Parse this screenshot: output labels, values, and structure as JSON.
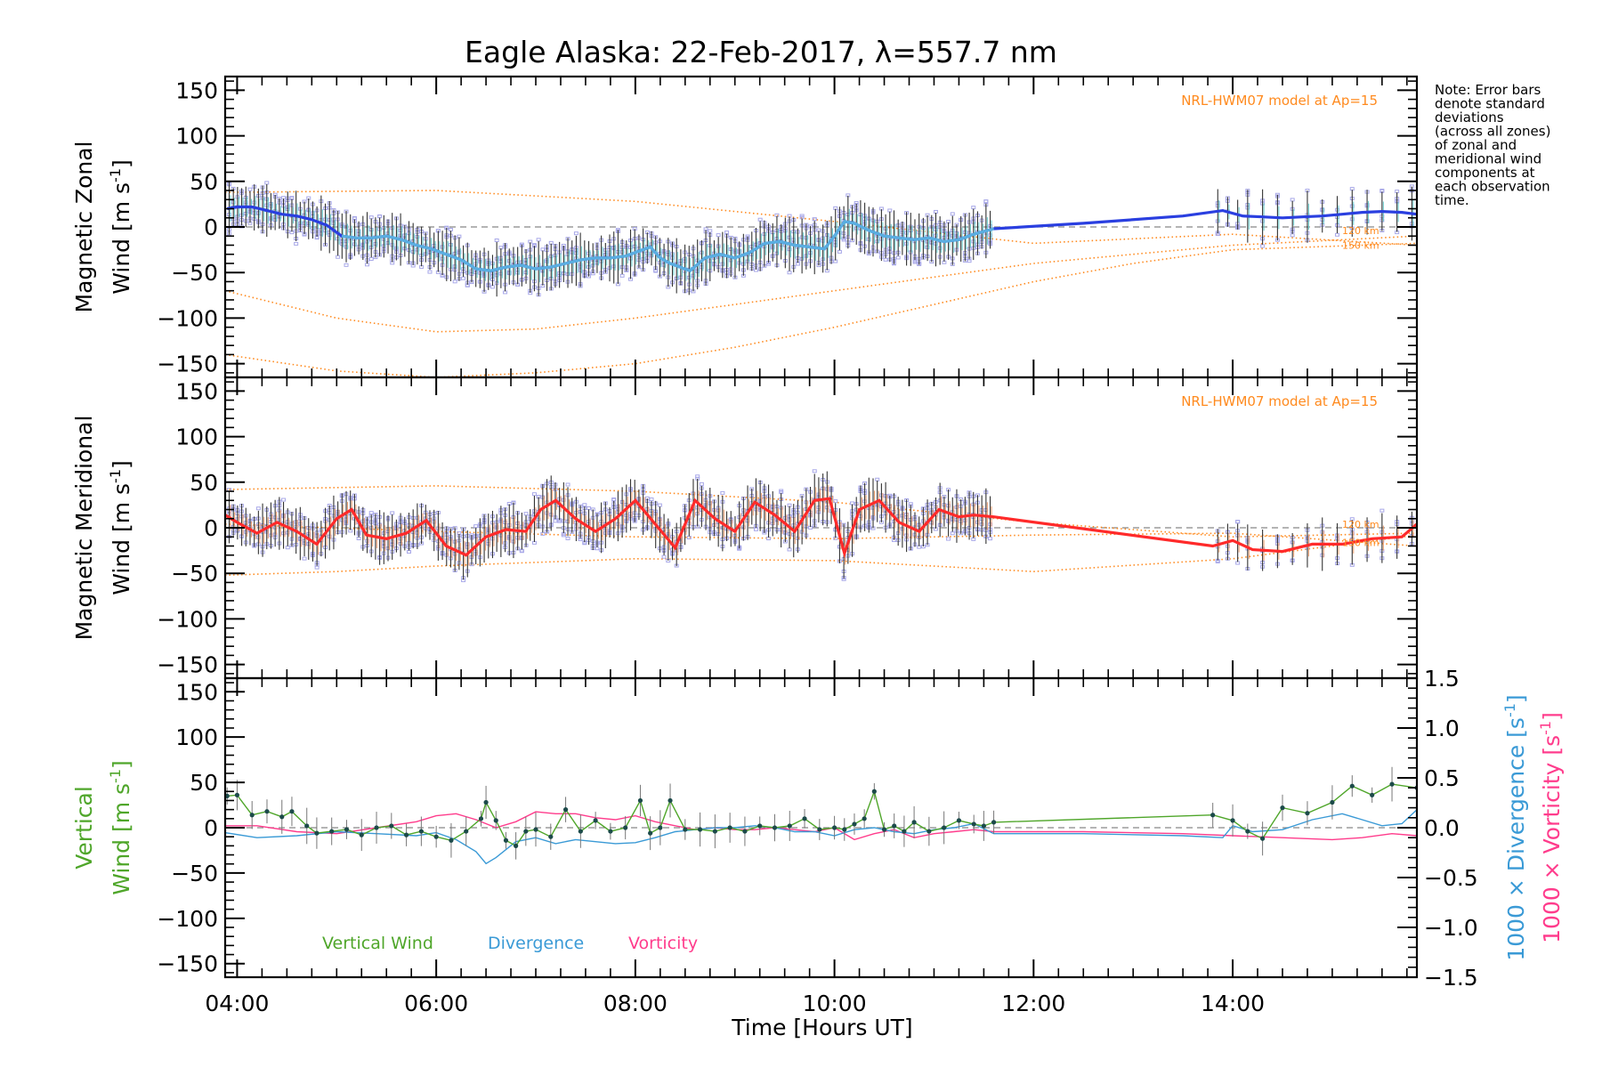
{
  "title": "Eagle Alaska: 22-Feb-2017, λ=557.7 nm",
  "note": [
    "Note: Error bars",
    "denote standard",
    "deviations",
    "(across all zones)",
    "of zonal and",
    "meridional wind",
    "components at",
    "each observation",
    "time."
  ],
  "xlabel": "Time [Hours UT]",
  "colors": {
    "zonal": "#2a3fe0",
    "zonal_light": "#5aaee0",
    "meridional": "#ff2a2a",
    "vertical": "#4fa62a",
    "divergence": "#3a9ad6",
    "vorticity": "#ff3c8c",
    "model": "#ff8a1e",
    "scatter": "#a8a8e8",
    "errorbar": "#333333",
    "zero": "#888888"
  },
  "chart_data": [
    {
      "id": "zonal",
      "type": "line",
      "ylabel_line1": "Magnetic Zonal",
      "ylabel_line2": "Wind [m s",
      "ylabel_sup": "-1",
      "ylabel_close": "]",
      "model_label": "NRL-HWM07 model at Ap=15",
      "height_labels": [
        "120 km",
        "150 km"
      ],
      "xlim": [
        3.88,
        15.85
      ],
      "ylim": [
        -165,
        165
      ],
      "x_ticks": [
        4,
        6,
        8,
        10,
        12,
        14
      ],
      "x_tick_labels": [
        "04:00",
        "06:00",
        "08:00",
        "10:00",
        "12:00",
        "14:00"
      ],
      "y_ticks": [
        -150,
        -100,
        -50,
        0,
        50,
        100,
        150
      ],
      "series": [
        {
          "role": "mean",
          "x": [
            3.9,
            4.0,
            4.15,
            4.3,
            4.45,
            4.6,
            4.75,
            4.9,
            5.05,
            5.2,
            5.35,
            5.5,
            5.65,
            5.8,
            5.95,
            6.1,
            6.25,
            6.4,
            6.55,
            6.7,
            6.85,
            7.0,
            7.15,
            7.3,
            7.45,
            7.6,
            7.75,
            7.9,
            8.05,
            8.15,
            8.25,
            8.35,
            8.45,
            8.55,
            8.7,
            8.85,
            9.0,
            9.15,
            9.3,
            9.45,
            9.6,
            9.75,
            9.9,
            10.0,
            10.1,
            10.2,
            10.35,
            10.5,
            10.65,
            10.8,
            10.95,
            11.1,
            11.25,
            11.4,
            11.6,
            12.5,
            13.5,
            13.9,
            14.1,
            14.3,
            14.5,
            14.7,
            14.9,
            15.1,
            15.3,
            15.5,
            15.7,
            15.85
          ],
          "y": [
            20,
            22,
            22,
            18,
            14,
            12,
            8,
            2,
            -10,
            -12,
            -12,
            -10,
            -14,
            -20,
            -24,
            -30,
            -36,
            -46,
            -48,
            -44,
            -42,
            -46,
            -44,
            -40,
            -36,
            -34,
            -34,
            -32,
            -26,
            -22,
            -34,
            -40,
            -44,
            -48,
            -34,
            -30,
            -34,
            -28,
            -18,
            -16,
            -20,
            -22,
            -24,
            -10,
            6,
            4,
            -4,
            -10,
            -12,
            -14,
            -12,
            -16,
            -14,
            -8,
            -2,
            4,
            12,
            18,
            12,
            11,
            10,
            11,
            12,
            14,
            16,
            17,
            16,
            14
          ]
        },
        {
          "role": "model_upper",
          "x": [
            3.88,
            6,
            8,
            10,
            12,
            14,
            15.85
          ],
          "y": [
            38,
            40,
            28,
            6,
            -18,
            -8,
            -20
          ]
        },
        {
          "role": "model_mid",
          "x": [
            3.88,
            5,
            6,
            7,
            8,
            9,
            10,
            11,
            12,
            13,
            14,
            15.85
          ],
          "y": [
            -70,
            -100,
            -115,
            -112,
            -100,
            -85,
            -70,
            -55,
            -40,
            -30,
            -20,
            -10
          ]
        },
        {
          "role": "model_low",
          "x": [
            3.88,
            5,
            6,
            7,
            8,
            9,
            10,
            11,
            12,
            13,
            14,
            15.85
          ],
          "y": [
            -140,
            -158,
            -165,
            -160,
            -150,
            -132,
            -110,
            -85,
            -60,
            -40,
            -25,
            -18
          ]
        }
      ]
    },
    {
      "id": "meridional",
      "type": "line",
      "ylabel_line1": "Magnetic Meridional",
      "ylabel_line2": "Wind [m s",
      "ylabel_sup": "-1",
      "ylabel_close": "]",
      "model_label": "NRL-HWM07 model at Ap=15",
      "height_labels": [
        "120 km",
        "150 km"
      ],
      "xlim": [
        3.88,
        15.85
      ],
      "ylim": [
        -165,
        165
      ],
      "x_ticks": [
        4,
        6,
        8,
        10,
        12,
        14
      ],
      "x_tick_labels": [
        "04:00",
        "06:00",
        "08:00",
        "10:00",
        "12:00",
        "14:00"
      ],
      "y_ticks": [
        -150,
        -100,
        -50,
        0,
        50,
        100,
        150
      ],
      "series": [
        {
          "role": "mean",
          "x": [
            3.88,
            4.0,
            4.2,
            4.4,
            4.6,
            4.8,
            5.0,
            5.15,
            5.3,
            5.5,
            5.7,
            5.9,
            6.1,
            6.3,
            6.5,
            6.7,
            6.9,
            7.05,
            7.2,
            7.4,
            7.6,
            7.8,
            8.0,
            8.2,
            8.4,
            8.6,
            8.8,
            9.0,
            9.2,
            9.4,
            9.6,
            9.8,
            9.95,
            10.1,
            10.25,
            10.45,
            10.65,
            10.85,
            11.05,
            11.25,
            11.4,
            11.6,
            13.8,
            14.0,
            14.2,
            14.5,
            14.8,
            15.1,
            15.4,
            15.7,
            15.85
          ],
          "y": [
            14,
            6,
            -6,
            6,
            -4,
            -18,
            10,
            20,
            -8,
            -12,
            -6,
            8,
            -20,
            -30,
            -10,
            -2,
            -4,
            20,
            30,
            10,
            -4,
            10,
            30,
            4,
            -22,
            30,
            10,
            -4,
            28,
            14,
            -4,
            30,
            32,
            -28,
            20,
            30,
            6,
            -4,
            20,
            12,
            14,
            12,
            -20,
            -14,
            -24,
            -26,
            -18,
            -18,
            -12,
            -10,
            4
          ]
        },
        {
          "role": "model_upper",
          "x": [
            3.88,
            6,
            8,
            10,
            12,
            14,
            15.85
          ],
          "y": [
            42,
            46,
            40,
            28,
            6,
            -10,
            -6
          ]
        },
        {
          "role": "model_mid",
          "x": [
            3.88,
            6,
            8,
            10,
            12,
            14,
            15.85
          ],
          "y": [
            4,
            -4,
            -10,
            -12,
            -8,
            -6,
            -20
          ]
        },
        {
          "role": "model_low",
          "x": [
            3.88,
            5,
            6,
            8,
            10,
            12,
            14,
            15.85
          ],
          "y": [
            -52,
            -48,
            -42,
            -34,
            -36,
            -48,
            -34,
            -8
          ]
        }
      ]
    },
    {
      "id": "vertical",
      "type": "line",
      "ylabel_line1": "Vertical",
      "ylabel_line2": "Wind [m s",
      "ylabel_sup": "-1",
      "ylabel_close": "]",
      "y2label_div": "1000 × Divergence [s",
      "y2label_vort": "1000 × Vorticity [s",
      "y2label_sup": "-1",
      "y2label_close": "]",
      "xlim": [
        3.88,
        15.85
      ],
      "ylim": [
        -165,
        165
      ],
      "y2lim": [
        -1.5,
        1.5
      ],
      "x_ticks": [
        4,
        6,
        8,
        10,
        12,
        14
      ],
      "x_tick_labels": [
        "04:00",
        "06:00",
        "08:00",
        "10:00",
        "12:00",
        "14:00"
      ],
      "y_ticks": [
        -150,
        -100,
        -50,
        0,
        50,
        100,
        150
      ],
      "y2_ticks": [
        -1.5,
        -1.0,
        -0.5,
        0.0,
        0.5,
        1.0,
        1.5
      ],
      "y2_tick_labels": [
        "−1.5",
        "−1.0",
        "−0.5",
        "0.0",
        "0.5",
        "1.0",
        "1.5"
      ],
      "legend": [
        "Vertical Wind",
        "Divergence",
        "Vorticity"
      ],
      "series": [
        {
          "name": "Vertical Wind",
          "axis": "left",
          "x": [
            3.9,
            4.0,
            4.15,
            4.3,
            4.45,
            4.55,
            4.7,
            4.8,
            4.95,
            5.1,
            5.25,
            5.4,
            5.55,
            5.7,
            5.85,
            6.0,
            6.15,
            6.3,
            6.45,
            6.5,
            6.6,
            6.7,
            6.8,
            6.9,
            7.0,
            7.15,
            7.3,
            7.45,
            7.6,
            7.75,
            7.9,
            8.05,
            8.15,
            8.25,
            8.35,
            8.5,
            8.65,
            8.8,
            8.95,
            9.1,
            9.25,
            9.4,
            9.55,
            9.7,
            9.85,
            10.0,
            10.1,
            10.2,
            10.3,
            10.4,
            10.5,
            10.6,
            10.7,
            10.8,
            10.95,
            11.1,
            11.25,
            11.4,
            11.5,
            11.6,
            13.8,
            14.0,
            14.15,
            14.3,
            14.5,
            14.75,
            15.0,
            15.2,
            15.4,
            15.6,
            15.85
          ],
          "y": [
            35,
            36,
            14,
            18,
            12,
            18,
            2,
            -6,
            -4,
            -2,
            -8,
            0,
            2,
            -8,
            -4,
            -10,
            -14,
            -4,
            10,
            28,
            8,
            -14,
            -20,
            -4,
            -2,
            -10,
            20,
            -4,
            8,
            -4,
            0,
            30,
            -6,
            0,
            30,
            -2,
            -2,
            -4,
            0,
            -4,
            2,
            0,
            2,
            10,
            -2,
            0,
            -2,
            4,
            10,
            40,
            -2,
            2,
            -4,
            6,
            -4,
            0,
            8,
            4,
            2,
            6,
            14,
            8,
            -4,
            -12,
            22,
            16,
            28,
            46,
            36,
            48,
            44
          ]
        },
        {
          "name": "Divergence",
          "axis": "right",
          "x": [
            3.88,
            4.2,
            4.6,
            5.0,
            5.4,
            5.8,
            6.0,
            6.2,
            6.4,
            6.5,
            6.6,
            6.8,
            7.0,
            7.2,
            7.4,
            7.6,
            7.8,
            8.0,
            8.2,
            8.4,
            8.6,
            8.8,
            9.0,
            9.2,
            9.4,
            9.6,
            9.8,
            10.0,
            10.2,
            10.4,
            10.6,
            10.8,
            11.0,
            11.2,
            11.4,
            11.6,
            12.5,
            13.5,
            13.9,
            14.0,
            14.2,
            14.5,
            14.8,
            15.1,
            15.3,
            15.5,
            15.7,
            15.85
          ],
          "y": [
            -0.05,
            -0.1,
            -0.08,
            -0.04,
            -0.06,
            -0.08,
            -0.05,
            -0.12,
            -0.24,
            -0.36,
            -0.3,
            -0.14,
            -0.1,
            -0.16,
            -0.12,
            -0.14,
            -0.16,
            -0.15,
            -0.1,
            -0.04,
            -0.02,
            0.0,
            0.0,
            0.02,
            0.0,
            -0.04,
            -0.04,
            -0.08,
            -0.02,
            0.0,
            -0.04,
            -0.06,
            -0.02,
            0.0,
            0.04,
            -0.06,
            -0.06,
            -0.08,
            -0.1,
            0.02,
            -0.04,
            -0.02,
            0.08,
            0.14,
            0.08,
            0.02,
            0.04,
            0.18
          ]
        },
        {
          "name": "Vorticity",
          "axis": "right",
          "x": [
            3.88,
            4.2,
            4.6,
            5.0,
            5.4,
            5.8,
            6.0,
            6.2,
            6.4,
            6.6,
            6.8,
            7.0,
            7.2,
            7.4,
            7.6,
            7.8,
            8.0,
            8.2,
            8.4,
            8.6,
            8.8,
            9.0,
            9.2,
            9.4,
            9.6,
            9.8,
            10.0,
            10.2,
            10.4,
            10.6,
            10.8,
            11.0,
            11.2,
            11.4,
            11.6,
            12.5,
            13.5,
            14.0,
            14.5,
            15.0,
            15.3,
            15.6,
            15.85
          ],
          "y": [
            0.02,
            0.02,
            -0.04,
            -0.06,
            0.0,
            0.06,
            0.12,
            0.14,
            0.08,
            0.0,
            0.06,
            0.16,
            0.14,
            0.14,
            0.1,
            0.08,
            0.12,
            0.06,
            0.02,
            -0.02,
            0.0,
            -0.02,
            -0.02,
            0.0,
            -0.02,
            -0.04,
            0.0,
            -0.12,
            -0.06,
            -0.02,
            -0.1,
            -0.06,
            -0.04,
            -0.02,
            -0.04,
            -0.04,
            -0.06,
            -0.08,
            -0.1,
            -0.12,
            -0.1,
            -0.06,
            -0.08
          ]
        }
      ]
    }
  ]
}
